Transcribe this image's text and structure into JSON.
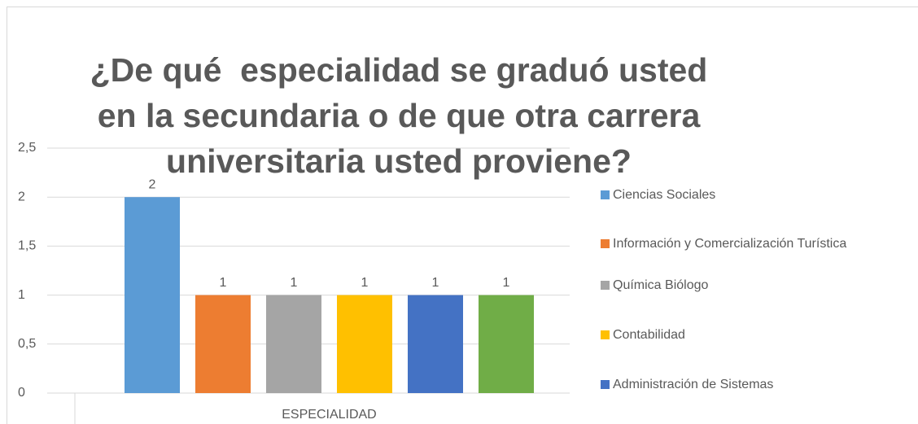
{
  "chart_data": {
    "type": "bar",
    "title": "¿De qué  especialidad se graduó usted en la secundaria o de que otra carrera universitaria usted proviene?",
    "categories": [
      "ESPECIALIDAD"
    ],
    "series": [
      {
        "name": "Ciencias Sociales",
        "color": "#5b9bd5",
        "values": [
          2
        ]
      },
      {
        "name": "Información y Comercialización Turística",
        "color": "#ed7d31",
        "values": [
          1
        ]
      },
      {
        "name": "Química Biólogo",
        "color": "#a5a5a5",
        "values": [
          1
        ]
      },
      {
        "name": "Contabilidad",
        "color": "#ffc000",
        "values": [
          1
        ]
      },
      {
        "name": "Administración de Sistemas",
        "color": "#4472c4",
        "values": [
          1
        ]
      },
      {
        "name": null,
        "color": "#70ad47",
        "values": [
          1
        ]
      }
    ],
    "ylim": [
      0,
      2.5
    ],
    "yticks": [
      0,
      {
        "value": 0.5,
        "label": "0,5"
      },
      1,
      {
        "value": 1.5,
        "label": "1,5"
      },
      2,
      {
        "value": 2.5,
        "label": "2,5"
      }
    ],
    "grid": true,
    "legend": "right"
  }
}
